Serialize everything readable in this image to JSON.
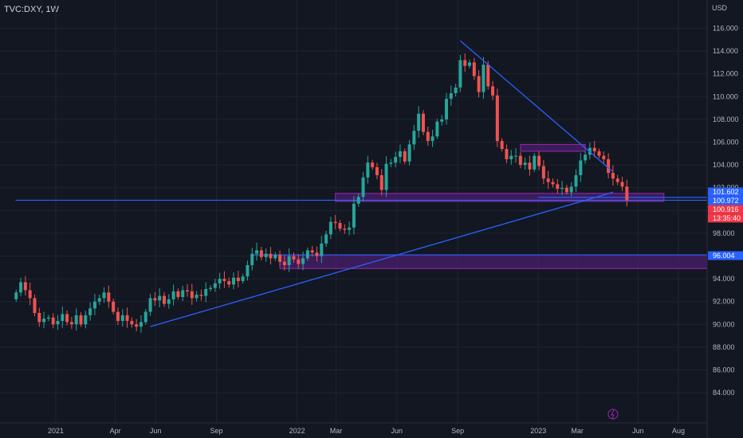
{
  "header": {
    "symbol": "TVC:DXY, 1W"
  },
  "currency": "USD",
  "colors": {
    "background": "#131722",
    "grid": "#1f2431",
    "up": "#26a69a",
    "down": "#ef5350",
    "trendline": "#2962ff",
    "zone_fill": "#4a1f6e",
    "zone_border": "#9c27b0",
    "hline": "#2962ff",
    "last_price": "#f23645"
  },
  "chart_data": {
    "type": "candlestick",
    "ylim": [
      83,
      117
    ],
    "y_ticks": [
      116,
      114,
      112,
      110,
      108,
      106,
      104,
      102,
      100,
      98,
      96,
      94,
      92,
      90,
      88,
      86,
      84
    ],
    "y_tick_labels": [
      "116.000",
      "114.000",
      "112.000",
      "110.000",
      "108.000",
      "106.000",
      "104.000",
      "102.000",
      "100.000",
      "98.000",
      "96.000",
      "94.000",
      "92.000",
      "90.000",
      "88.000",
      "86.000",
      "84.000"
    ],
    "x_ticks": [
      {
        "label": "2021",
        "date": "2021-01-01"
      },
      {
        "label": "Apr",
        "date": "2021-04-01"
      },
      {
        "label": "Jun",
        "date": "2021-06-01"
      },
      {
        "label": "Sep",
        "date": "2021-09-01"
      },
      {
        "label": "2022",
        "date": "2022-01-01"
      },
      {
        "label": "Mar",
        "date": "2022-03-01"
      },
      {
        "label": "Jun",
        "date": "2022-06-01"
      },
      {
        "label": "Sep",
        "date": "2022-09-01"
      },
      {
        "label": "2023",
        "date": "2023-01-01"
      },
      {
        "label": "Mar",
        "date": "2023-03-01"
      },
      {
        "label": "Jun",
        "date": "2023-06-01"
      },
      {
        "label": "Aug",
        "date": "2023-08-01"
      }
    ],
    "closes": [
      92.8,
      93.7,
      93.0,
      92.3,
      91.0,
      90.2,
      90.5,
      90.6,
      90.0,
      90.3,
      90.9,
      90.2,
      90.0,
      90.8,
      90.0,
      90.8,
      91.4,
      92.0,
      92.3,
      92.8,
      92.0,
      91.1,
      90.3,
      90.8,
      90.3,
      90.0,
      89.8,
      90.2,
      91.1,
      92.3,
      92.1,
      92.5,
      91.8,
      92.2,
      92.9,
      92.4,
      93.0,
      92.9,
      92.3,
      92.6,
      92.5,
      93.1,
      93.2,
      93.6,
      94.0,
      93.8,
      93.5,
      94.1,
      93.8,
      94.2,
      95.2,
      96.2,
      96.5,
      95.9,
      96.2,
      95.8,
      96.1,
      95.5,
      95.2,
      96.0,
      95.7,
      95.3,
      95.8,
      96.5,
      96.3,
      96.0,
      97.1,
      97.9,
      99.0,
      98.9,
      98.4,
      98.3,
      98.5,
      100.6,
      101.2,
      102.9,
      104.2,
      103.8,
      103.1,
      101.8,
      104.1,
      104.2,
      104.7,
      105.2,
      104.3,
      105.8,
      107.0,
      108.5,
      106.9,
      106.1,
      106.5,
      107.8,
      108.0,
      109.8,
      110.3,
      110.8,
      113.2,
      112.7,
      113.0,
      111.8,
      110.4,
      112.8,
      110.9,
      110.1,
      106.1,
      105.4,
      104.5,
      104.8,
      104.8,
      104.0,
      104.2,
      103.6,
      104.8,
      103.9,
      102.8,
      102.5,
      102.3,
      101.9,
      102.0,
      101.6,
      102.1,
      103.1,
      104.4,
      104.9,
      105.5,
      105.2,
      104.8,
      104.5,
      103.3,
      102.8,
      102.5,
      102.1,
      100.9
    ],
    "trendlines": [
      {
        "from": {
          "date": "2021-05-24",
          "price": 89.8
        },
        "to": {
          "date": "2023-04-24",
          "price": 101.6
        }
      },
      {
        "from": {
          "date": "2022-09-05",
          "price": 114.9
        },
        "to": {
          "date": "2023-04-24",
          "price": 103.4
        }
      }
    ],
    "zones": [
      {
        "from": "2022-02-28",
        "to": "2023-07-10",
        "top": 101.5,
        "bottom": 100.8
      },
      {
        "from": "2021-12-06",
        "to": "2023-11-01",
        "top": 96.1,
        "bottom": 94.9
      },
      {
        "from": "2022-12-05",
        "to": "2023-03-13",
        "top": 105.8,
        "bottom": 105.2
      }
    ],
    "hlines": [
      {
        "price": 100.9,
        "from": "2020-11-01",
        "to": "2023-11-01"
      },
      {
        "price": 101.15,
        "from": "2023-01-01",
        "to": "2023-11-01"
      },
      {
        "price": 96.1,
        "from": "2021-10-25",
        "to": "2023-11-01"
      }
    ],
    "price_badges": [
      {
        "label": "101.602",
        "price": 101.602,
        "color": "#2962ff"
      },
      {
        "label": "100.972",
        "price": 100.972,
        "color": "#2962ff"
      },
      {
        "label": "100.916",
        "price": 100.916,
        "color": "#f23645"
      },
      {
        "label": "13:35:40",
        "price": 100.916,
        "color": "#f23645",
        "sub": true
      },
      {
        "label": "96.004",
        "price": 96.004,
        "color": "#2962ff"
      }
    ]
  }
}
